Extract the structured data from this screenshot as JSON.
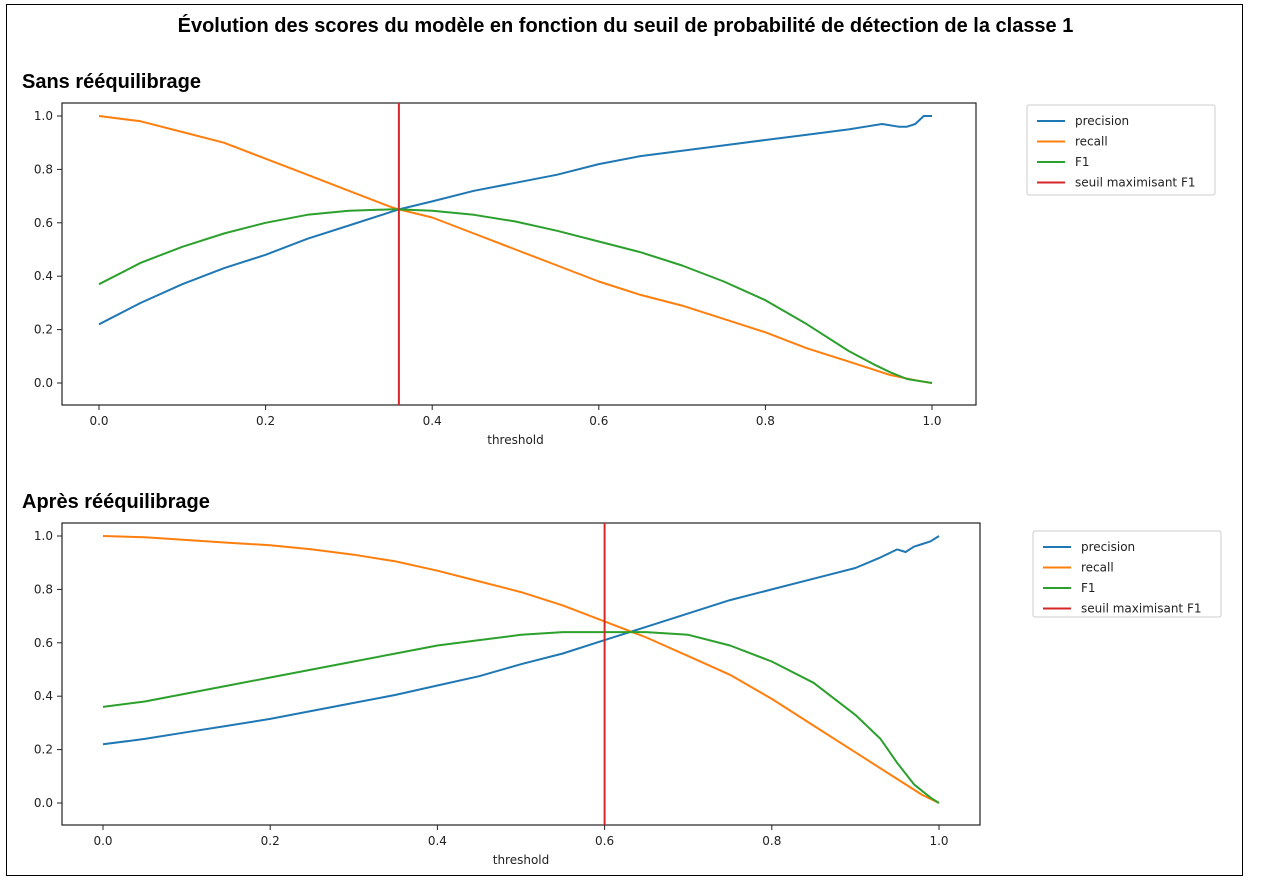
{
  "title": "Évolution des scores du modèle en fonction du seuil de probabilité de détection de la classe 1",
  "sections": [
    {
      "label": "Sans rééquilibrage"
    },
    {
      "label": "Après rééquilibrage"
    }
  ],
  "colors": {
    "precision": "#1f77b4",
    "recall": "#ff7f0e",
    "F1": "#2ca02c",
    "threshold_line": "#d62728"
  },
  "chart_data": [
    {
      "type": "line",
      "xlabel": "threshold",
      "xlim": [
        0,
        1
      ],
      "ylim": [
        0,
        1
      ],
      "xticks": [
        "0.0",
        "0.2",
        "0.4",
        "0.6",
        "0.8",
        "1.0"
      ],
      "yticks": [
        "0.0",
        "0.2",
        "0.4",
        "0.6",
        "0.8",
        "1.0"
      ],
      "legend_position": "outside-right",
      "vline": {
        "name": "seuil maximisant F1",
        "x": 0.36
      },
      "series": [
        {
          "name": "precision",
          "color": "#1f77b4",
          "x": [
            0,
            0.05,
            0.1,
            0.15,
            0.2,
            0.25,
            0.3,
            0.35,
            0.36,
            0.4,
            0.45,
            0.5,
            0.55,
            0.6,
            0.65,
            0.7,
            0.75,
            0.8,
            0.85,
            0.9,
            0.92,
            0.94,
            0.96,
            0.97,
            0.98,
            0.99,
            1.0
          ],
          "y": [
            0.22,
            0.3,
            0.37,
            0.43,
            0.48,
            0.54,
            0.59,
            0.64,
            0.65,
            0.68,
            0.72,
            0.75,
            0.78,
            0.82,
            0.85,
            0.87,
            0.89,
            0.91,
            0.93,
            0.95,
            0.96,
            0.97,
            0.96,
            0.96,
            0.97,
            1.0,
            1.0
          ]
        },
        {
          "name": "recall",
          "color": "#ff7f0e",
          "x": [
            0,
            0.05,
            0.1,
            0.15,
            0.2,
            0.25,
            0.3,
            0.35,
            0.36,
            0.4,
            0.45,
            0.5,
            0.55,
            0.6,
            0.65,
            0.7,
            0.75,
            0.8,
            0.85,
            0.9,
            0.95,
            0.98,
            1.0
          ],
          "y": [
            1.0,
            0.98,
            0.94,
            0.9,
            0.84,
            0.78,
            0.72,
            0.66,
            0.65,
            0.62,
            0.56,
            0.5,
            0.44,
            0.38,
            0.33,
            0.29,
            0.24,
            0.19,
            0.13,
            0.08,
            0.03,
            0.01,
            0.0
          ]
        },
        {
          "name": "F1",
          "color": "#2ca02c",
          "x": [
            0,
            0.05,
            0.1,
            0.15,
            0.2,
            0.25,
            0.3,
            0.35,
            0.36,
            0.4,
            0.45,
            0.5,
            0.55,
            0.6,
            0.65,
            0.7,
            0.75,
            0.8,
            0.85,
            0.9,
            0.93,
            0.95,
            0.97,
            0.99,
            1.0
          ],
          "y": [
            0.37,
            0.45,
            0.51,
            0.56,
            0.6,
            0.63,
            0.645,
            0.65,
            0.65,
            0.645,
            0.63,
            0.605,
            0.57,
            0.53,
            0.49,
            0.44,
            0.38,
            0.31,
            0.22,
            0.12,
            0.07,
            0.04,
            0.015,
            0.005,
            0.0
          ]
        }
      ]
    },
    {
      "type": "line",
      "xlabel": "threshold",
      "xlim": [
        0,
        1
      ],
      "ylim": [
        0,
        1
      ],
      "xticks": [
        "0.0",
        "0.2",
        "0.4",
        "0.6",
        "0.8",
        "1.0"
      ],
      "yticks": [
        "0.0",
        "0.2",
        "0.4",
        "0.6",
        "0.8",
        "1.0"
      ],
      "legend_position": "outside-right",
      "vline": {
        "name": "seuil maximisant F1",
        "x": 0.6
      },
      "series": [
        {
          "name": "precision",
          "color": "#1f77b4",
          "x": [
            0,
            0.05,
            0.1,
            0.15,
            0.2,
            0.25,
            0.3,
            0.35,
            0.4,
            0.45,
            0.5,
            0.55,
            0.6,
            0.65,
            0.7,
            0.75,
            0.8,
            0.85,
            0.9,
            0.93,
            0.95,
            0.96,
            0.97,
            0.98,
            0.99,
            1.0
          ],
          "y": [
            0.22,
            0.24,
            0.265,
            0.29,
            0.315,
            0.345,
            0.375,
            0.405,
            0.44,
            0.475,
            0.52,
            0.56,
            0.61,
            0.66,
            0.71,
            0.76,
            0.8,
            0.84,
            0.88,
            0.92,
            0.95,
            0.94,
            0.96,
            0.97,
            0.98,
            1.0
          ]
        },
        {
          "name": "recall",
          "color": "#ff7f0e",
          "x": [
            0,
            0.05,
            0.1,
            0.15,
            0.2,
            0.25,
            0.3,
            0.35,
            0.4,
            0.45,
            0.5,
            0.55,
            0.6,
            0.65,
            0.7,
            0.75,
            0.8,
            0.85,
            0.9,
            0.95,
            0.98,
            1.0
          ],
          "y": [
            1.0,
            0.995,
            0.985,
            0.975,
            0.965,
            0.95,
            0.93,
            0.905,
            0.87,
            0.83,
            0.79,
            0.74,
            0.68,
            0.62,
            0.55,
            0.48,
            0.39,
            0.29,
            0.19,
            0.09,
            0.03,
            0.0
          ]
        },
        {
          "name": "F1",
          "color": "#2ca02c",
          "x": [
            0,
            0.05,
            0.1,
            0.15,
            0.2,
            0.25,
            0.3,
            0.35,
            0.4,
            0.45,
            0.5,
            0.55,
            0.6,
            0.65,
            0.7,
            0.75,
            0.8,
            0.85,
            0.9,
            0.93,
            0.95,
            0.97,
            0.99,
            1.0
          ],
          "y": [
            0.36,
            0.38,
            0.41,
            0.44,
            0.47,
            0.5,
            0.53,
            0.56,
            0.59,
            0.61,
            0.63,
            0.64,
            0.64,
            0.64,
            0.63,
            0.59,
            0.53,
            0.45,
            0.33,
            0.24,
            0.15,
            0.07,
            0.02,
            0.0
          ]
        }
      ]
    }
  ]
}
